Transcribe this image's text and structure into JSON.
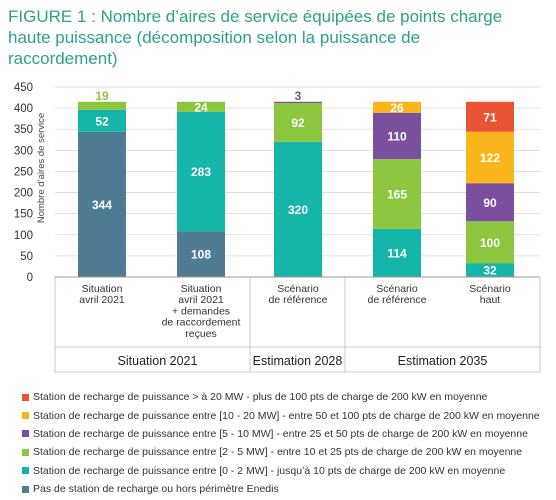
{
  "title": "FIGURE 1 : Nombre d’aires de service équipées de points charge haute puissance (décomposition selon la puissance de raccordement)",
  "chart_data": {
    "type": "bar",
    "stacked": true,
    "title": "FIGURE 1 : Nombre d’aires de service équipées de points charge haute puissance (décomposition selon la puissance de raccordement)",
    "xlabel": "",
    "ylabel": "Nombre d’aires de service",
    "ylim": [
      0,
      450
    ],
    "yticks": [
      0,
      50,
      100,
      150,
      200,
      250,
      300,
      350,
      400,
      450
    ],
    "grid": true,
    "legend_position": "bottom",
    "categories": [
      [
        "Situation",
        "avril 2021"
      ],
      [
        "Situation",
        "avril 2021",
        "+ demandes",
        "de raccordement",
        "reçues"
      ],
      [
        "Scénario",
        "de référence"
      ],
      [
        "Scénario",
        "de référence"
      ],
      [
        "Scénario",
        "haut"
      ]
    ],
    "groups": [
      {
        "label": "Situation 2021",
        "span": 2
      },
      {
        "label": "Estimation 2028",
        "span": 1
      },
      {
        "label": "Estimation 2035",
        "span": 2
      }
    ],
    "series": [
      {
        "name": "Pas de station de recharge ou hors périmètre Enedis",
        "color": "#4f7b94",
        "values": [
          344,
          108,
          0,
          0,
          0
        ]
      },
      {
        "name": "Station de recharge de puissance entre [0 - 2 MW] - jusqu’à 10 pts de charge de 200 kW en moyenne",
        "color": "#15b5a9",
        "values": [
          52,
          283,
          320,
          114,
          32
        ]
      },
      {
        "name": "Station de recharge de puissance entre [2 - 5 MW] - entre 10 et 25 pts de charge de 200 kW en moyenne",
        "color": "#8cc63f",
        "values": [
          19,
          24,
          92,
          165,
          100
        ]
      },
      {
        "name": "Station de recharge de puissance entre [5 - 10 MW] - entre 25 et 50 pts de charge de 200 kW en moyenne",
        "color": "#7a4f9e",
        "values": [
          0,
          0,
          3,
          110,
          90
        ]
      },
      {
        "name": "Station de recharge de puissance entre [10 - 20 MW] - entre 50 et 100 pts de charge de 200 kW en moyenne",
        "color": "#f9b51b",
        "values": [
          0,
          0,
          0,
          26,
          122
        ]
      },
      {
        "name": "Station de recharge de puissance > à 20 MW - plus de 100 pts de charge de 200 kW en moyenne",
        "color": "#ea5436",
        "values": [
          0,
          0,
          0,
          0,
          71
        ]
      }
    ],
    "data_labels": [
      [
        "344",
        "52",
        "19"
      ],
      [
        "108",
        "283",
        "24"
      ],
      [
        "320",
        "92",
        "3"
      ],
      [
        "114",
        "165",
        "110",
        "26"
      ],
      [
        "32",
        "100",
        "90",
        "122",
        "71"
      ]
    ]
  },
  "legend": [
    {
      "label": "Station de recharge de puissance > à 20 MW - plus de 100 pts de charge de 200 kW en moyenne",
      "color": "#ea5436"
    },
    {
      "label": "Station de recharge de puissance entre [10 - 20 MW] - entre 50 et 100 pts de charge de 200 kW en moyenne",
      "color": "#f9b51b"
    },
    {
      "label": "Station de recharge de puissance entre [5 - 10 MW] - entre 25 et 50 pts de charge de 200 kW en moyenne",
      "color": "#7a4f9e"
    },
    {
      "label": "Station de recharge de puissance entre [2 - 5 MW] - entre 10 et 25 pts de charge de 200 kW en moyenne",
      "color": "#8cc63f"
    },
    {
      "label": "Station de recharge de puissance entre [0 - 2 MW] - jusqu’à 10 pts de charge de 200 kW en moyenne",
      "color": "#15b5a9"
    },
    {
      "label": "Pas de station de recharge ou hors périmètre Enedis",
      "color": "#4f7b94"
    }
  ]
}
